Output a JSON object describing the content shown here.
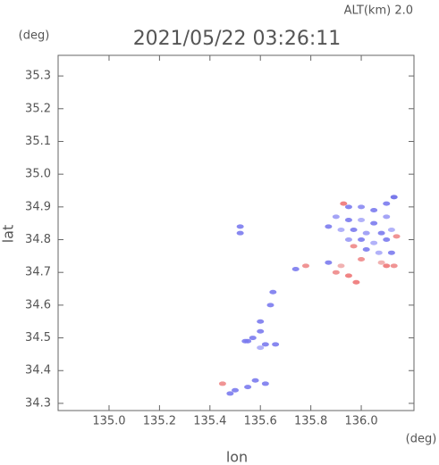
{
  "chart_data": {
    "type": "scatter",
    "title": "2021/05/22 03:26:11",
    "subtitle": "ALT(km) 2.0",
    "x_label": "lon",
    "y_label": "lat",
    "x_unit": "(deg)",
    "y_unit": "(deg)",
    "xlim": [
      134.798,
      136.209
    ],
    "ylim": [
      34.278,
      35.363
    ],
    "xticks": [
      {
        "value": 135,
        "label": "135.0"
      },
      135.2,
      135.4,
      135.6,
      135.8,
      {
        "value": 136,
        "label": "136.0"
      }
    ],
    "yticks": [
      34.3,
      34.4,
      34.5,
      34.6,
      34.7,
      34.8,
      34.9,
      {
        "value": 35,
        "label": "35.0"
      },
      35.1,
      35.2,
      35.3
    ],
    "x": [
      135.95,
      136.0,
      136.05,
      136.1,
      136.13,
      135.9,
      135.95,
      136.0,
      136.05,
      136.1,
      135.87,
      135.92,
      135.97,
      136.02,
      136.08,
      136.12,
      135.95,
      136.0,
      136.05,
      136.1,
      136.14,
      136.02,
      136.07,
      136.12,
      136.0,
      136.08,
      136.13,
      135.93,
      135.97,
      136.1,
      135.92,
      135.95,
      135.9,
      135.87,
      135.98,
      135.78,
      135.74,
      135.52,
      135.52,
      135.65,
      135.64,
      135.6,
      135.6,
      135.57,
      135.55,
      135.62,
      135.66,
      135.6,
      135.58,
      135.62,
      135.55,
      135.5,
      135.45,
      135.48,
      135.54
    ],
    "y": [
      34.9,
      34.9,
      34.89,
      34.91,
      34.93,
      34.87,
      34.86,
      34.86,
      34.85,
      34.87,
      34.84,
      34.83,
      34.83,
      34.82,
      34.82,
      34.83,
      34.8,
      34.8,
      34.79,
      34.8,
      34.81,
      34.77,
      34.76,
      34.76,
      34.74,
      34.73,
      34.72,
      34.91,
      34.78,
      34.72,
      34.72,
      34.69,
      34.7,
      34.73,
      34.67,
      34.72,
      34.71,
      34.82,
      34.84,
      34.64,
      34.6,
      34.55,
      34.52,
      34.5,
      34.49,
      34.48,
      34.48,
      34.47,
      34.37,
      34.36,
      34.35,
      34.34,
      34.36,
      34.33,
      34.49
    ],
    "colors": [
      "#7b7bee",
      "#8a8af2",
      "#7b7bee",
      "#7b7bee",
      "#6a6ae8",
      "#9a9af5",
      "#7b7bee",
      "#aaaaf8",
      "#7b7bee",
      "#9a9af5",
      "#7b7bee",
      "#aaaaf8",
      "#7b7bee",
      "#9a9af5",
      "#7b7bee",
      "#aaaaf8",
      "#9a9af5",
      "#7b7bee",
      "#aaaaf8",
      "#7b7bee",
      "#ee8888",
      "#7b7bee",
      "#aaaaf8",
      "#7b7bee",
      "#ee8888",
      "#f0aaaa",
      "#ee8888",
      "#ee7777",
      "#ee8888",
      "#ee7777",
      "#f0aaaa",
      "#ee7777",
      "#ee8888",
      "#7b7bee",
      "#ee7777",
      "#ee8888",
      "#7b7bee",
      "#7b7bee",
      "#7b7bee",
      "#7b7bee",
      "#7b7bee",
      "#7b7bee",
      "#7b7bee",
      "#7b7bee",
      "#7b7bee",
      "#7b7bee",
      "#7b7bee",
      "#aaaaf8",
      "#7b7bee",
      "#7b7bee",
      "#7b7bee",
      "#7b7bee",
      "#ee8888",
      "#7b7bee",
      "#7b7bee"
    ]
  }
}
